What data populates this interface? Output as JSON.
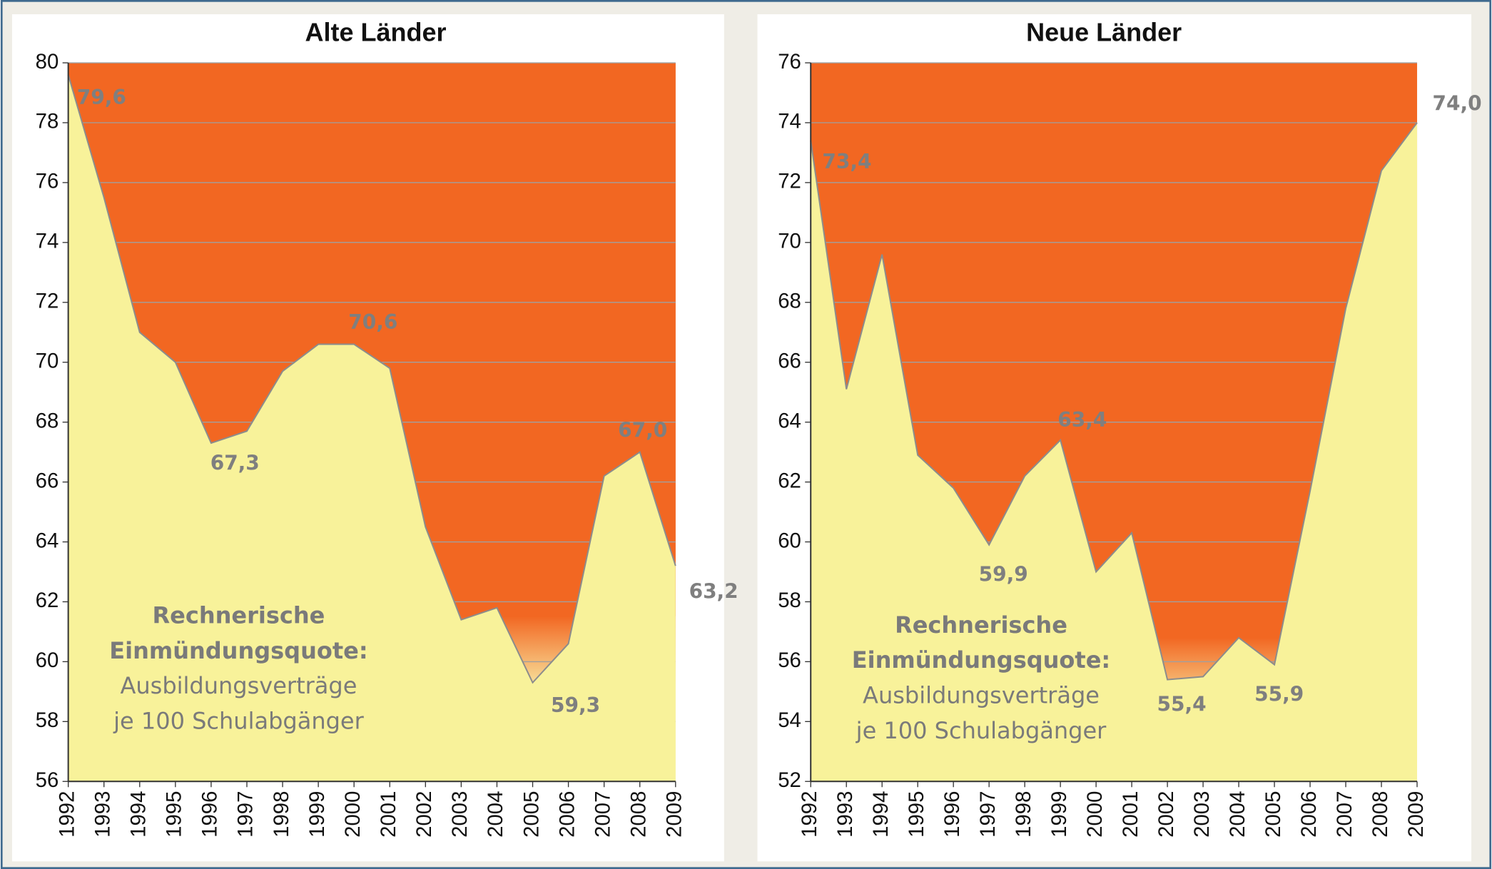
{
  "chart_data": [
    {
      "type": "area",
      "title": "Alte Länder",
      "categories": [
        "1992",
        "1993",
        "1994",
        "1995",
        "1996",
        "1997",
        "1998",
        "1999",
        "2000",
        "2001",
        "2002",
        "2003",
        "2004",
        "2005",
        "2006",
        "2007",
        "2008",
        "2009"
      ],
      "values": [
        79.6,
        75.5,
        71.0,
        70.0,
        67.3,
        67.7,
        69.7,
        70.6,
        70.6,
        69.8,
        64.5,
        61.4,
        61.8,
        59.3,
        60.6,
        66.2,
        67.0,
        63.2
      ],
      "value_labels": [
        "79,6",
        null,
        null,
        null,
        "67,3",
        null,
        null,
        null,
        "70,6",
        null,
        null,
        null,
        null,
        "59,3",
        null,
        null,
        "67,0",
        "63,2"
      ],
      "color": "#f8f29a",
      "background_color": "#f26722",
      "ylim": [
        56,
        80
      ],
      "yticks": [
        56,
        58,
        60,
        62,
        64,
        66,
        68,
        70,
        72,
        74,
        76,
        78,
        80
      ],
      "grid": true,
      "annotation": [
        "Rechnerische",
        "Einmündungsquote:",
        "Ausbildungsverträge",
        "je 100 Schulabgänger"
      ]
    },
    {
      "type": "area",
      "title": "Neue Länder",
      "categories": [
        "1992",
        "1993",
        "1994",
        "1995",
        "1996",
        "1997",
        "1998",
        "1999",
        "2000",
        "2001",
        "2002",
        "2003",
        "2004",
        "2005",
        "2006",
        "2007",
        "2008",
        "2009"
      ],
      "values": [
        73.4,
        65.1,
        69.6,
        62.9,
        61.8,
        59.9,
        62.2,
        63.4,
        59.0,
        60.3,
        55.4,
        55.5,
        56.8,
        55.9,
        61.7,
        67.8,
        72.4,
        74.0
      ],
      "value_labels": [
        "73,4",
        null,
        null,
        null,
        null,
        "59,9",
        null,
        "63,4",
        null,
        null,
        "55,4",
        null,
        null,
        "55,9",
        null,
        null,
        null,
        "74,0"
      ],
      "color": "#f8f29a",
      "background_color": "#f26722",
      "ylim": [
        52,
        76
      ],
      "yticks": [
        52,
        54,
        56,
        58,
        60,
        62,
        64,
        66,
        68,
        70,
        72,
        74,
        76
      ],
      "grid": true,
      "annotation": [
        "Rechnerische",
        "Einmündungsquote:",
        "Ausbildungsverträge",
        "je 100 Schulabgänger"
      ]
    }
  ]
}
